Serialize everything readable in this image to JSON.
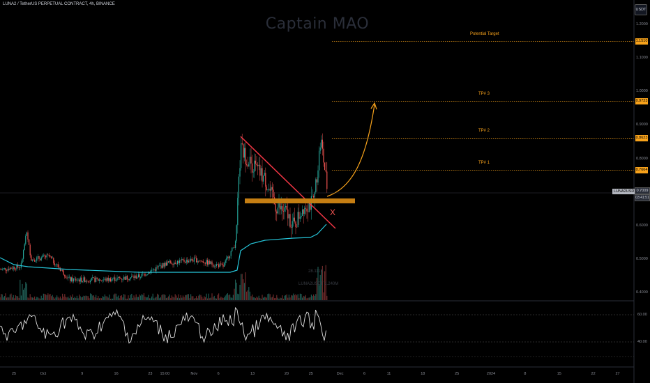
{
  "header": {
    "symbol_title": "LUNA2 / TetherUS PERPETUAL CONTRACT, 4h, BINANCE",
    "watermark": "Captain MAO",
    "currency": "USDT"
  },
  "price_axis": {
    "ticks": [
      {
        "label": "1.2000",
        "price": 1.2
      },
      {
        "label": "1.1000",
        "price": 1.1
      },
      {
        "label": "1.0000",
        "price": 1.0
      },
      {
        "label": "0.9000",
        "price": 0.9
      },
      {
        "label": "0.8000",
        "price": 0.8
      },
      {
        "label": "0.6000",
        "price": 0.6
      },
      {
        "label": "0.5000",
        "price": 0.5
      },
      {
        "label": "0.4000",
        "price": 0.4
      }
    ]
  },
  "levels": [
    {
      "name": "Potential Target",
      "value": "1.1510",
      "price": 1.151
    },
    {
      "name": "TP# 3",
      "value": "0.9723",
      "price": 0.9723
    },
    {
      "name": "TP# 2",
      "value": "0.8623",
      "price": 0.8623
    },
    {
      "name": "TP# 1",
      "value": "0.7664",
      "price": 0.7664
    }
  ],
  "last_price": {
    "symbol": "LUNA2USDT.P",
    "value": "0.7009",
    "countdown": "03:41:51"
  },
  "volume": {
    "label1": "28.111K",
    "label2": "LUNA2USDT 1.240M"
  },
  "oscillator": {
    "ticks": [
      {
        "label": "60.00",
        "level": 60
      },
      {
        "label": "40.00",
        "level": 40
      }
    ]
  },
  "time_axis": {
    "ticks": [
      {
        "label": "25",
        "day_index": 0
      },
      {
        "label": "Oct",
        "day_index": 6
      },
      {
        "label": "9",
        "day_index": 14
      },
      {
        "label": "16",
        "day_index": 21
      },
      {
        "label": "23",
        "day_index": 28
      },
      {
        "label": "15:00",
        "day_index": 31
      },
      {
        "label": "Nov",
        "day_index": 37
      },
      {
        "label": "6",
        "day_index": 42
      },
      {
        "label": "13",
        "day_index": 49
      },
      {
        "label": "20",
        "day_index": 56
      },
      {
        "label": "25",
        "day_index": 61
      },
      {
        "label": "Dec",
        "day_index": 67
      },
      {
        "label": "6",
        "day_index": 72
      },
      {
        "label": "11",
        "day_index": 77
      },
      {
        "label": "18",
        "day_index": 84
      },
      {
        "label": "25",
        "day_index": 91
      },
      {
        "label": "2024",
        "day_index": 98
      },
      {
        "label": "8",
        "day_index": 105
      },
      {
        "label": "15",
        "day_index": 112
      },
      {
        "label": "22",
        "day_index": 119
      },
      {
        "label": "27",
        "day_index": 124
      }
    ]
  },
  "colors": {
    "up": "#26a69a",
    "down": "#ef5350",
    "vwap": "#26c6da",
    "trendline": "#f23645",
    "support": "#c57e13",
    "projection": "#f7a21b",
    "level": "#f7a21b",
    "oscillator": "#e0e0e0"
  },
  "annotations": {
    "invalidation_mark": "X"
  }
}
